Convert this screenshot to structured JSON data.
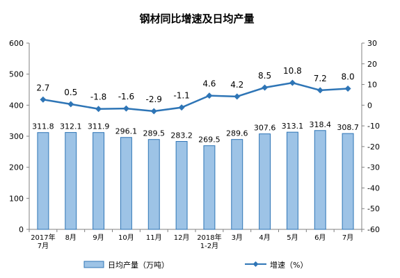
{
  "chart_data": {
    "type": "bar+line",
    "title": "钢材同比增速及日均产量",
    "categories": [
      [
        "2017年",
        "7月"
      ],
      [
        "8月"
      ],
      [
        "9月"
      ],
      [
        "10月"
      ],
      [
        "11月"
      ],
      [
        "12月"
      ],
      [
        "2018年",
        "1-2月"
      ],
      [
        "3月"
      ],
      [
        "4月"
      ],
      [
        "5月"
      ],
      [
        "6月"
      ],
      [
        "7月"
      ]
    ],
    "series": [
      {
        "name": "日均产量（万吨）",
        "type": "bar",
        "axis": "left",
        "color": "#9dc3e6",
        "edge_color": "#2e75b6",
        "values": [
          311.8,
          312.1,
          311.9,
          296.1,
          289.5,
          283.2,
          269.5,
          289.6,
          307.6,
          313.1,
          318.4,
          308.7
        ],
        "labels": [
          "311.8",
          "312.1",
          "311.9",
          "296.1",
          "289.5",
          "283.2",
          "269.5",
          "289.6",
          "307.6",
          "313.1",
          "318.4",
          "308.7"
        ]
      },
      {
        "name": "增速（%）",
        "type": "line",
        "axis": "right",
        "color": "#2e75b6",
        "marker": "diamond",
        "values": [
          2.7,
          0.5,
          -1.8,
          -1.6,
          -2.9,
          -1.1,
          4.6,
          4.2,
          8.5,
          10.8,
          7.2,
          8.0
        ],
        "labels": [
          "2.7",
          "0.5",
          "-1.8",
          "-1.6",
          "-2.9",
          "-1.1",
          "4.6",
          "4.2",
          "8.5",
          "10.8",
          "7.2",
          "8.0"
        ]
      }
    ],
    "y_left": {
      "range": [
        0,
        600
      ],
      "ticks": [
        "0",
        "100",
        "200",
        "300",
        "400",
        "500",
        "600"
      ]
    },
    "y_right": {
      "range": [
        -60,
        30
      ],
      "ticks": [
        "-60",
        "-50",
        "-40",
        "-30",
        "-20",
        "-10",
        "0",
        "10",
        "20",
        "30"
      ]
    },
    "grid": false,
    "legend_position": "bottom"
  }
}
